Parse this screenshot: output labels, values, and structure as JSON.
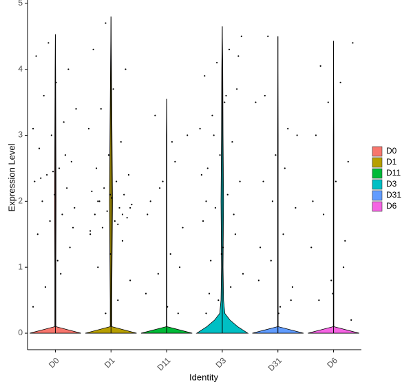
{
  "chart_data": {
    "type": "violin",
    "x_label": "Identity",
    "y_label": "Expression Level",
    "ylim": [
      -0.25,
      5.05
    ],
    "yticks": [
      0,
      1,
      2,
      3,
      4,
      5
    ],
    "density_y": [
      0,
      0.1,
      0.2,
      0.3,
      0.5,
      1,
      2,
      3,
      4
    ],
    "series": [
      {
        "name": "D0",
        "color": "#F8766D",
        "max": 4.53,
        "density": [
          1,
          0.02,
          0.02,
          0.02,
          0.02,
          0.02,
          0.03,
          0.02,
          0.01
        ],
        "points": [
          0.4,
          0.7,
          1.1,
          1.3,
          1.5,
          1.7,
          1.8,
          1.9,
          2.0,
          2.1,
          2.2,
          2.3,
          2.4,
          2.5,
          2.6,
          2.8,
          3.0,
          3.2,
          3.4,
          3.6,
          3.8,
          4.0,
          4.2,
          4.4,
          0.9,
          1.6,
          2.35,
          2.45,
          2.7,
          3.1
        ]
      },
      {
        "name": "D1",
        "color": "#B79F00",
        "max": 4.8,
        "density": [
          1,
          0.03,
          0.03,
          0.03,
          0.03,
          0.04,
          0.06,
          0.04,
          0.02
        ],
        "points": [
          0.3,
          0.5,
          0.8,
          1.0,
          1.2,
          1.4,
          1.5,
          1.6,
          1.7,
          1.75,
          1.8,
          1.85,
          1.9,
          1.95,
          2.0,
          2.05,
          2.1,
          2.15,
          2.2,
          2.3,
          2.4,
          2.5,
          2.7,
          2.9,
          3.1,
          3.4,
          3.7,
          4.0,
          4.3,
          4.7,
          1.65,
          1.9,
          2.0,
          2.1,
          1.8,
          1.55
        ]
      },
      {
        "name": "D11",
        "color": "#00BA38",
        "max": 3.55,
        "density": [
          1,
          0.01,
          0.01,
          0.01,
          0.01,
          0.01,
          0.01,
          0.01,
          0.0
        ],
        "points": [
          0.3,
          0.6,
          0.9,
          1.2,
          1.6,
          2.0,
          2.3,
          2.6,
          3.0,
          3.3,
          0.4,
          1.0,
          1.8,
          2.2,
          2.9
        ]
      },
      {
        "name": "D3",
        "color": "#00BFC4",
        "max": 4.65,
        "density": [
          1,
          0.6,
          0.3,
          0.1,
          0.05,
          0.03,
          0.05,
          0.03,
          0.02
        ],
        "points": [
          0.3,
          0.5,
          0.7,
          0.9,
          1.1,
          1.3,
          1.5,
          1.7,
          1.9,
          2.1,
          2.3,
          2.5,
          2.7,
          2.9,
          3.1,
          3.3,
          3.5,
          3.7,
          3.9,
          4.1,
          4.3,
          4.5,
          0.6,
          1.2,
          1.8,
          2.4,
          3.0,
          3.6,
          4.2,
          2.0
        ]
      },
      {
        "name": "D31",
        "color": "#619CFF",
        "max": 4.5,
        "density": [
          1,
          0.01,
          0.01,
          0.01,
          0.01,
          0.01,
          0.01,
          0.01,
          0.0
        ],
        "points": [
          0.3,
          0.5,
          0.8,
          1.1,
          1.5,
          1.9,
          2.3,
          2.7,
          3.1,
          3.5,
          4.5,
          0.4,
          0.7,
          1.3,
          2.0,
          2.5,
          3.0,
          3.6
        ]
      },
      {
        "name": "D6",
        "color": "#F564E3",
        "max": 4.43,
        "density": [
          1,
          0.01,
          0.01,
          0.01,
          0.01,
          0.01,
          0.01,
          0.01,
          0.0
        ],
        "points": [
          0.2,
          0.5,
          0.8,
          1.0,
          1.3,
          1.8,
          2.3,
          2.6,
          3.0,
          3.5,
          3.8,
          4.4,
          4.05,
          0.6,
          1.4,
          2.0
        ]
      }
    ]
  }
}
